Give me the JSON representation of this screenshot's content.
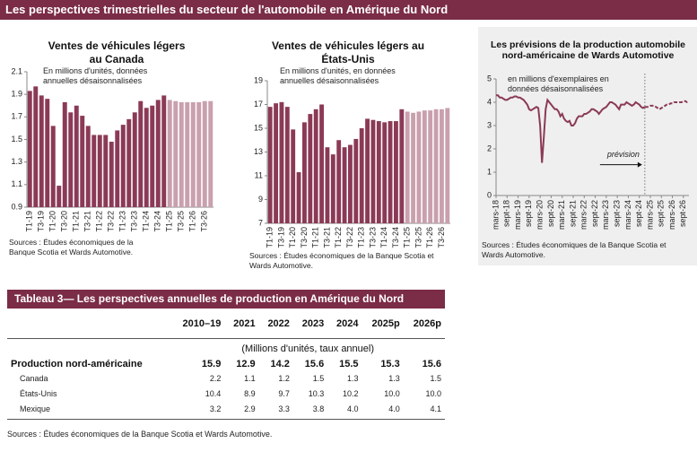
{
  "header": {
    "title": "Les perspectives trimestrielles du secteur de l'automobile en Amérique du Nord"
  },
  "chart_data": [
    {
      "type": "bar",
      "title": "Ventes de véhicules légers au Canada",
      "subtitle": "En millions d'unités, données annuelles désaisonnalisées",
      "source": "Sources : Études économiques de la Banque Scotia et Wards Automotive.",
      "categories": [
        "T1-19",
        null,
        "T3-19",
        null,
        "T1-20",
        null,
        "T3-20",
        null,
        "T1-21",
        null,
        "T3-21",
        null,
        "T1-22",
        null,
        "T3-22",
        null,
        "T1-23",
        null,
        "T3-23",
        null,
        "T1-24",
        null,
        "T3-24",
        null,
        "T1-25",
        null,
        "T3-25",
        null,
        "T1-26",
        null,
        "T3-26",
        null
      ],
      "values": [
        1.93,
        1.97,
        1.89,
        1.86,
        1.62,
        1.09,
        1.83,
        1.74,
        1.8,
        1.71,
        1.62,
        1.54,
        1.54,
        1.54,
        1.48,
        1.58,
        1.63,
        1.68,
        1.74,
        1.84,
        1.78,
        1.8,
        1.85,
        1.89,
        1.85,
        1.84,
        1.83,
        1.83,
        1.83,
        1.83,
        1.84,
        1.84
      ],
      "colors": [
        "#8b3a56",
        "#8b3a56",
        "#8b3a56",
        "#8b3a56",
        "#8b3a56",
        "#8b3a56",
        "#8b3a56",
        "#8b3a56",
        "#8b3a56",
        "#8b3a56",
        "#8b3a56",
        "#8b3a56",
        "#8b3a56",
        "#8b3a56",
        "#8b3a56",
        "#8b3a56",
        "#8b3a56",
        "#8b3a56",
        "#8b3a56",
        "#8b3a56",
        "#8b3a56",
        "#8b3a56",
        "#8b3a56",
        "#8b3a56",
        "#c9a0ad",
        "#c9a0ad",
        "#c9a0ad",
        "#c9a0ad",
        "#c9a0ad",
        "#c9a0ad",
        "#c9a0ad",
        "#c9a0ad"
      ],
      "ylim": [
        0.9,
        2.1
      ],
      "yticks": [
        0.9,
        1.1,
        1.3,
        1.5,
        1.7,
        1.9,
        2.1
      ]
    },
    {
      "type": "bar",
      "title": "Ventes de véhicules légers au États-Unis",
      "subtitle": "En millions d'unités, en données annuelles désaisonnalisées",
      "source": "Sources : Études économiques de la Banque Scotia et Wards Automotive.",
      "categories": [
        "T1-19",
        null,
        "T3-19",
        null,
        "T1-20",
        null,
        "T3-20",
        null,
        "T1-21",
        null,
        "T3-21",
        null,
        "T1-22",
        null,
        "T3-22",
        null,
        "T1-23",
        null,
        "T3-23",
        null,
        "T1-24",
        null,
        "T3-24",
        null,
        "T1-25",
        null,
        "T3-25",
        null,
        "T1-26",
        null,
        "T3-26",
        null
      ],
      "values": [
        16.8,
        17.1,
        17.2,
        16.8,
        14.9,
        11.3,
        15.5,
        16.2,
        16.6,
        17.0,
        13.4,
        12.8,
        14.0,
        13.4,
        13.6,
        14.1,
        15.0,
        15.8,
        15.7,
        15.6,
        15.5,
        15.6,
        15.6,
        16.6,
        16.4,
        16.3,
        16.4,
        16.5,
        16.5,
        16.6,
        16.6,
        16.7
      ],
      "colors": [
        "#8b3a56",
        "#8b3a56",
        "#8b3a56",
        "#8b3a56",
        "#8b3a56",
        "#8b3a56",
        "#8b3a56",
        "#8b3a56",
        "#8b3a56",
        "#8b3a56",
        "#8b3a56",
        "#8b3a56",
        "#8b3a56",
        "#8b3a56",
        "#8b3a56",
        "#8b3a56",
        "#8b3a56",
        "#8b3a56",
        "#8b3a56",
        "#8b3a56",
        "#8b3a56",
        "#8b3a56",
        "#8b3a56",
        "#8b3a56",
        "#c9a0ad",
        "#c9a0ad",
        "#c9a0ad",
        "#c9a0ad",
        "#c9a0ad",
        "#c9a0ad",
        "#c9a0ad",
        "#c9a0ad"
      ],
      "ylim": [
        7,
        19
      ],
      "yticks": [
        7,
        9,
        11,
        13,
        15,
        17,
        19
      ]
    },
    {
      "type": "line",
      "title": "Les prévisions de la production automobile nord-américaine de Wards Automotive",
      "subtitle": "en millions d'exemplaires en données désaisonnalisées",
      "source": "Sources : Études économiques de la Banque Scotia et Wards Automotive.",
      "annotation": "prévision",
      "categories": [
        "mars-18",
        null,
        null,
        null,
        null,
        null,
        "sept-18",
        null,
        null,
        null,
        null,
        null,
        "mars-19",
        null,
        null,
        null,
        null,
        null,
        "sept-19",
        null,
        null,
        null,
        null,
        null,
        "mars-20",
        null,
        null,
        null,
        null,
        null,
        "sept-20",
        null,
        null,
        null,
        null,
        null,
        "mars-21",
        null,
        null,
        null,
        null,
        null,
        "sept-21",
        null,
        null,
        null,
        null,
        null,
        "mars-22",
        null,
        null,
        null,
        null,
        null,
        "sept-22",
        null,
        null,
        null,
        null,
        null,
        "mars-23",
        null,
        null,
        null,
        null,
        null,
        "sept-23",
        null,
        null,
        null,
        null,
        null,
        "mars-24",
        null,
        null,
        null,
        null,
        null,
        "sept-24",
        null,
        null,
        null,
        null,
        null,
        "mars-25",
        null,
        null,
        null,
        null,
        null,
        "sept-25",
        null,
        null,
        null,
        null,
        null,
        "mars-26",
        null,
        null,
        null,
        null,
        null,
        "sept-26",
        null,
        null,
        null
      ],
      "series": [
        {
          "color": "#8b3a56",
          "style": "solid",
          "values": [
            4.3,
            4.3,
            4.2,
            4.2,
            4.15,
            4.1,
            4.1,
            4.15,
            4.2,
            4.2,
            4.25,
            4.25,
            4.2,
            4.2,
            4.15,
            4.1,
            4.0,
            3.9,
            3.7,
            3.65,
            3.7,
            3.75,
            3.8,
            3.75,
            3.0,
            1.4,
            2.5,
            3.7,
            4.1,
            4.0,
            3.9,
            3.8,
            3.7,
            3.7,
            3.6,
            3.4,
            3.5,
            3.3,
            3.2,
            3.15,
            3.2,
            3.0,
            3.0,
            3.1,
            3.3,
            3.4,
            3.4,
            3.4,
            3.5,
            3.5,
            3.55,
            3.6,
            3.7,
            3.7,
            3.65,
            3.6,
            3.5,
            3.6,
            3.7,
            3.75,
            3.8,
            3.9,
            4.0,
            4.0,
            3.95,
            3.9,
            3.8,
            3.7,
            3.9,
            3.9,
            3.9,
            4.0,
            3.95,
            3.9,
            3.85,
            3.9,
            4.0,
            3.95,
            3.9,
            3.8,
            3.75,
            3.8,
            null,
            null,
            null,
            null,
            null,
            null,
            null,
            null,
            null,
            null,
            null,
            null,
            null,
            null,
            null,
            null,
            null,
            null,
            null,
            null,
            null,
            null,
            null,
            null
          ]
        },
        {
          "color": "#8b3a56",
          "style": "dashed",
          "values": [
            null,
            null,
            null,
            null,
            null,
            null,
            null,
            null,
            null,
            null,
            null,
            null,
            null,
            null,
            null,
            null,
            null,
            null,
            null,
            null,
            null,
            null,
            null,
            null,
            null,
            null,
            null,
            null,
            null,
            null,
            null,
            null,
            null,
            null,
            null,
            null,
            null,
            null,
            null,
            null,
            null,
            null,
            null,
            null,
            null,
            null,
            null,
            null,
            null,
            null,
            null,
            null,
            null,
            null,
            null,
            null,
            null,
            null,
            null,
            null,
            null,
            null,
            null,
            null,
            null,
            null,
            null,
            null,
            null,
            null,
            null,
            null,
            null,
            null,
            null,
            null,
            null,
            null,
            null,
            null,
            null,
            3.8,
            3.8,
            3.8,
            3.85,
            3.85,
            3.85,
            3.8,
            3.75,
            3.7,
            3.75,
            3.8,
            3.85,
            3.9,
            3.9,
            3.95,
            3.95,
            4.0,
            4.0,
            4.0,
            4.0,
            4.0,
            4.05,
            4.05,
            4.0,
            4.0
          ]
        }
      ],
      "ylim": [
        0,
        5
      ],
      "yticks": [
        0,
        1,
        2,
        3,
        4,
        5
      ]
    }
  ],
  "table": {
    "title": "Tableau 3— Les perspectives annuelles de production en Amérique du Nord",
    "columns": [
      "2010–19",
      "2021",
      "2022",
      "2023",
      "2024",
      "2025p",
      "2026p"
    ],
    "unit": "(Millions d'unités, taux annuel)",
    "rows": [
      [
        "Production nord-américaine",
        "15.9",
        "12.9",
        "14.2",
        "15.6",
        "15.5",
        "15.3",
        "15.6"
      ],
      [
        "Canada",
        "2.2",
        "1.1",
        "1.2",
        "1.5",
        "1.3",
        "1.3",
        "1.5"
      ],
      [
        "États-Unis",
        "10.4",
        "8.9",
        "9.7",
        "10.3",
        "10.2",
        "10.0",
        "10.0"
      ],
      [
        "Mexique",
        "3.2",
        "2.9",
        "3.3",
        "3.8",
        "4.0",
        "4.0",
        "4.1"
      ]
    ],
    "source": "Sources : Études économiques de la Banque Scotia et Wards Automotive."
  }
}
